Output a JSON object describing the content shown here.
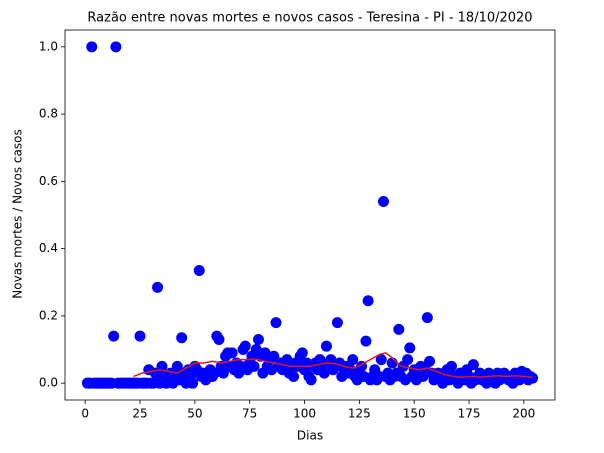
{
  "chart_data": {
    "type": "scatter",
    "title": "Razão entre novas mortes e novos casos - Teresina - PI - 18/10/2020",
    "xlabel": "Dias",
    "ylabel": "Novas mortes / Novos casos",
    "xlim": [
      -9.2,
      214.2
    ],
    "ylim": [
      -0.05,
      1.05
    ],
    "xticks": [
      0,
      25,
      50,
      75,
      100,
      125,
      150,
      175,
      200
    ],
    "yticks": [
      {
        "value": 0,
        "label": "0.0"
      },
      0.2,
      0.4,
      0.6,
      0.8,
      {
        "value": 1,
        "label": "1.0"
      }
    ],
    "series": [
      {
        "type": "scatter",
        "color": "#0000ff",
        "x": [
          1,
          2,
          3,
          4,
          5,
          6,
          7,
          8,
          9,
          10,
          11,
          12,
          13,
          14,
          15,
          16,
          17,
          18,
          19,
          20,
          21,
          22,
          23,
          24,
          25,
          26,
          27,
          28,
          29,
          30,
          31,
          32,
          33,
          34,
          35,
          36,
          37,
          38,
          39,
          40,
          41,
          42,
          43,
          44,
          45,
          46,
          47,
          48,
          49,
          50,
          51,
          52,
          53,
          54,
          55,
          56,
          57,
          58,
          59,
          60,
          61,
          62,
          63,
          64,
          65,
          66,
          67,
          68,
          69,
          70,
          71,
          72,
          73,
          74,
          75,
          76,
          77,
          78,
          79,
          80,
          81,
          82,
          83,
          84,
          85,
          86,
          87,
          88,
          89,
          90,
          91,
          92,
          93,
          94,
          95,
          96,
          97,
          98,
          99,
          100,
          101,
          102,
          103,
          104,
          105,
          106,
          107,
          108,
          109,
          110,
          111,
          112,
          113,
          114,
          115,
          116,
          117,
          118,
          119,
          120,
          121,
          122,
          123,
          124,
          125,
          126,
          127,
          128,
          129,
          130,
          131,
          132,
          133,
          134,
          135,
          136,
          137,
          138,
          139,
          140,
          141,
          142,
          143,
          144,
          145,
          146,
          147,
          148,
          149,
          150,
          151,
          152,
          153,
          154,
          155,
          156,
          157,
          158,
          159,
          160,
          161,
          162,
          163,
          164,
          165,
          166,
          167,
          168,
          169,
          170,
          171,
          172,
          173,
          174,
          175,
          176,
          177,
          178,
          179,
          180,
          181,
          182,
          183,
          184,
          185,
          186,
          187,
          188,
          189,
          190,
          191,
          192,
          193,
          194,
          195,
          196,
          197,
          198,
          199,
          200,
          201,
          202,
          203,
          204
        ],
        "values": [
          0,
          0,
          1.0,
          0,
          0,
          0,
          0,
          0,
          0,
          0,
          0,
          0,
          0.14,
          1.0,
          0,
          0,
          0,
          0,
          0,
          0,
          0,
          0,
          0,
          0,
          0.14,
          0,
          0,
          0,
          0.04,
          0,
          0,
          0.03,
          0.285,
          0,
          0.05,
          0.02,
          0,
          0.01,
          0.03,
          0,
          0.02,
          0.05,
          0.01,
          0.135,
          0.03,
          0,
          0.04,
          0.02,
          0,
          0.05,
          0.04,
          0.335,
          0.02,
          0.03,
          0.01,
          0.02,
          0.04,
          0.02,
          0.03,
          0.14,
          0.13,
          0.05,
          0.03,
          0.08,
          0.09,
          0.05,
          0.09,
          0.04,
          0.06,
          0.03,
          0.05,
          0.1,
          0.11,
          0.04,
          0.06,
          0.08,
          0.05,
          0.1,
          0.13,
          0.08,
          0.03,
          0.09,
          0.05,
          0.07,
          0.04,
          0.08,
          0.18,
          0.05,
          0.06,
          0.04,
          0.06,
          0.07,
          0.03,
          0.05,
          0.02,
          0.06,
          0.05,
          0.08,
          0.09,
          0.04,
          0.06,
          0.02,
          0.01,
          0.05,
          0.06,
          0.04,
          0.07,
          0.05,
          0.03,
          0.11,
          0.06,
          0.07,
          0.04,
          0.05,
          0.18,
          0.06,
          0.02,
          0.04,
          0.05,
          0.03,
          0.04,
          0.07,
          0.02,
          0.01,
          0.03,
          0.05,
          0.02,
          0.125,
          0.245,
          0.01,
          0.02,
          0.04,
          0.01,
          0.02,
          0.07,
          0.54,
          0.02,
          0.03,
          0.01,
          0.06,
          0.02,
          0.03,
          0.16,
          0.02,
          0.05,
          0.01,
          0.07,
          0.105,
          0.02,
          0.04,
          0.01,
          0.03,
          0.05,
          0.02,
          0.04,
          0.195,
          0.065,
          0.03,
          0.01,
          0.02,
          0.03,
          0.01,
          0,
          0.02,
          0.04,
          0.01,
          0.05,
          0.02,
          0.01,
          0,
          0.03,
          0.02,
          0.01,
          0.04,
          0.02,
          0,
          0.055,
          0.01,
          0.02,
          0.03,
          0.01,
          0.02,
          0,
          0.03,
          0.01,
          0.02,
          0,
          0.03,
          0.01,
          0.02,
          0.03,
          0.02,
          0.01,
          0.02,
          0,
          0.03,
          0.02,
          0.01,
          0.035,
          0.02,
          0.03,
          0.01,
          0.02,
          0.015
        ]
      },
      {
        "type": "line",
        "color": "#e0161c",
        "x": [
          22,
          26,
          30,
          34,
          38,
          42,
          46,
          50,
          54,
          58,
          62,
          66,
          70,
          74,
          78,
          82,
          86,
          90,
          94,
          98,
          102,
          106,
          110,
          114,
          118,
          122,
          126,
          130,
          134,
          137,
          140,
          144,
          148,
          152,
          156,
          160,
          164,
          168,
          172,
          176,
          180,
          184,
          188,
          192,
          196,
          200,
          204
        ],
        "values": [
          0.02,
          0.03,
          0.035,
          0.04,
          0.035,
          0.03,
          0.045,
          0.06,
          0.06,
          0.065,
          0.06,
          0.065,
          0.07,
          0.07,
          0.072,
          0.065,
          0.06,
          0.055,
          0.05,
          0.05,
          0.05,
          0.055,
          0.06,
          0.058,
          0.05,
          0.045,
          0.055,
          0.07,
          0.085,
          0.09,
          0.075,
          0.05,
          0.045,
          0.04,
          0.045,
          0.035,
          0.025,
          0.02,
          0.018,
          0.02,
          0.018,
          0.02,
          0.022,
          0.02,
          0.022,
          0.02,
          0.018
        ]
      }
    ]
  }
}
